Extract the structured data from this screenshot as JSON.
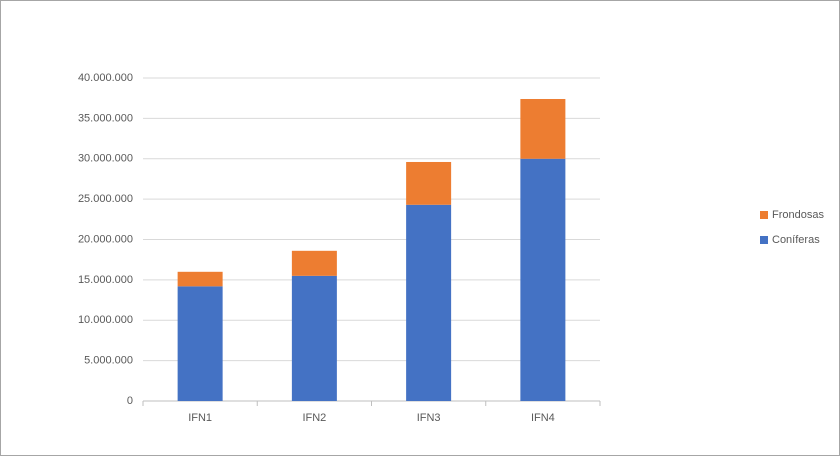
{
  "chart_data": {
    "type": "stacked_bar",
    "categories": [
      "IFN1",
      "IFN2",
      "IFN3",
      "IFN4"
    ],
    "series": [
      {
        "name": "Coníferas",
        "color": "#4472c4",
        "values": [
          14200000,
          15500000,
          24300000,
          30000000
        ]
      },
      {
        "name": "Frondosas",
        "color": "#ed7d31",
        "values": [
          1800000,
          3100000,
          5300000,
          7400000
        ]
      }
    ],
    "ylim": [
      0,
      40000000
    ],
    "yticks": [
      0,
      {
        "value": 5000000,
        "label": "5.000.000"
      },
      {
        "value": 10000000,
        "label": "10.000.000"
      },
      {
        "value": 15000000,
        "label": "15.000.000"
      },
      {
        "value": 20000000,
        "label": "20.000.000"
      },
      {
        "value": 25000000,
        "label": "25.000.000"
      },
      {
        "value": 30000000,
        "label": "30.000.000"
      },
      {
        "value": 35000000,
        "label": "35.000.000"
      },
      {
        "value": 40000000,
        "label": "40.000.000"
      }
    ],
    "grid": true,
    "legend": "right"
  }
}
